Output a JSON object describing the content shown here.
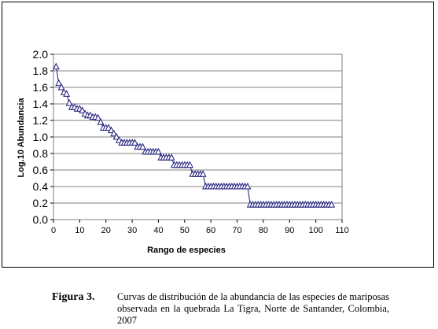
{
  "chart_data": {
    "type": "line",
    "title": "",
    "xlabel": "Rango de especies",
    "ylabel": "Log.10 Abundancia",
    "xlim": [
      0,
      110
    ],
    "ylim": [
      0.0,
      2.0
    ],
    "x_ticks": [
      "0",
      "10",
      "20",
      "30",
      "40",
      "50",
      "60",
      "70",
      "80",
      "90",
      "100",
      "110"
    ],
    "y_ticks": [
      "0.0",
      "0.2",
      "0.4",
      "0.6",
      "0.8",
      "1.0",
      "1.2",
      "1.4",
      "1.6",
      "1.8",
      "2.0"
    ],
    "grid": "horizontal",
    "legend": "none",
    "series_color": "#1a1a7a",
    "marker": "triangle",
    "series": [
      {
        "x": [
          1,
          2,
          3,
          4,
          5,
          6,
          7,
          8,
          9,
          10,
          11,
          12,
          13,
          14,
          15,
          16,
          17,
          18,
          19,
          20,
          21,
          22,
          23,
          24,
          25,
          26,
          27,
          28,
          29,
          30,
          31,
          32,
          33,
          34,
          35,
          36,
          37,
          38,
          39,
          40,
          41,
          42,
          43,
          44,
          45,
          46,
          47,
          48,
          49,
          50,
          51,
          52,
          53,
          54,
          55,
          56,
          57,
          58,
          59,
          60,
          61,
          62,
          63,
          64,
          65,
          66,
          67,
          68,
          69,
          70,
          71,
          72,
          73,
          74,
          75,
          76,
          77,
          78,
          79,
          80,
          81,
          82,
          83,
          84,
          85,
          86,
          87,
          88,
          89,
          90,
          91,
          92,
          93,
          94,
          95,
          96,
          97,
          98,
          99,
          100,
          101,
          102,
          103,
          104,
          105,
          106
        ],
        "values": [
          1.85,
          1.65,
          1.6,
          1.54,
          1.52,
          1.41,
          1.36,
          1.36,
          1.34,
          1.34,
          1.32,
          1.28,
          1.26,
          1.26,
          1.24,
          1.24,
          1.23,
          1.18,
          1.11,
          1.11,
          1.11,
          1.08,
          1.04,
          1.0,
          0.96,
          0.93,
          0.93,
          0.93,
          0.93,
          0.93,
          0.93,
          0.88,
          0.88,
          0.88,
          0.82,
          0.82,
          0.82,
          0.82,
          0.82,
          0.82,
          0.75,
          0.75,
          0.75,
          0.75,
          0.75,
          0.66,
          0.66,
          0.66,
          0.66,
          0.66,
          0.66,
          0.66,
          0.55,
          0.55,
          0.55,
          0.55,
          0.55,
          0.4,
          0.4,
          0.4,
          0.4,
          0.4,
          0.4,
          0.4,
          0.4,
          0.4,
          0.4,
          0.4,
          0.4,
          0.4,
          0.4,
          0.4,
          0.4,
          0.4,
          0.18,
          0.18,
          0.18,
          0.18,
          0.18,
          0.18,
          0.18,
          0.18,
          0.18,
          0.18,
          0.18,
          0.18,
          0.18,
          0.18,
          0.18,
          0.18,
          0.18,
          0.18,
          0.18,
          0.18,
          0.18,
          0.18,
          0.18,
          0.18,
          0.18,
          0.18,
          0.18,
          0.18,
          0.18,
          0.18,
          0.18,
          0.18
        ]
      }
    ]
  },
  "caption": {
    "label": "Figura 3.",
    "text": "Curvas de distribución de la abundancia de las especies de mariposas observada en la quebrada La Tigra, Norte de Santander, Colombia, 2007"
  }
}
